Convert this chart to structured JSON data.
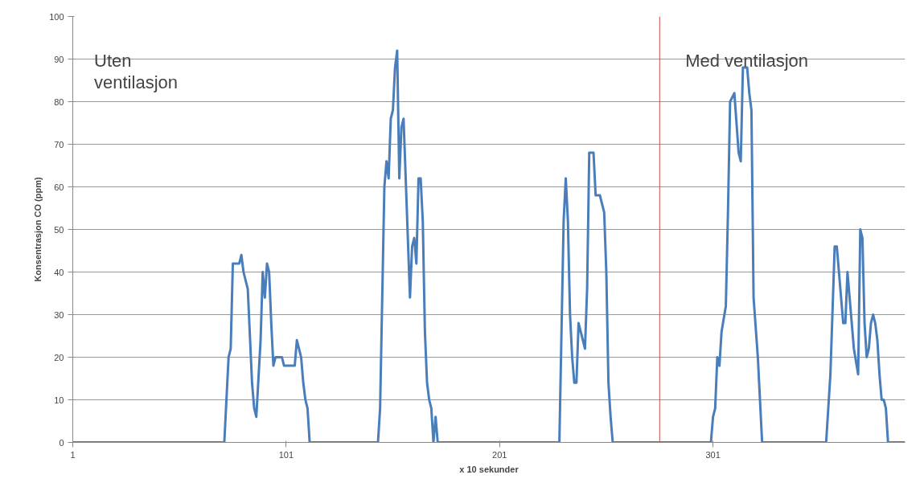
{
  "chart_data": {
    "type": "line",
    "xlabel": "x 10 sekunder",
    "ylabel": "Konsentrasjon CO (ppm)",
    "x": [
      1,
      72,
      74,
      75,
      76,
      79,
      80,
      81,
      83,
      85,
      86,
      87,
      89,
      90,
      91,
      92,
      93,
      94,
      95,
      96,
      99,
      100,
      105,
      106,
      107,
      108,
      109,
      110,
      111,
      112,
      144,
      145,
      147,
      148,
      149,
      150,
      151,
      152,
      153,
      154,
      155,
      156,
      159,
      160,
      161,
      162,
      163,
      164,
      165,
      166,
      167,
      168,
      169,
      170,
      171,
      172,
      229,
      231,
      232,
      233,
      234,
      235,
      236,
      237,
      238,
      239,
      241,
      242,
      243,
      245,
      246,
      248,
      250,
      251,
      252,
      253,
      254,
      300,
      301,
      302,
      303,
      304,
      305,
      307,
      308,
      309,
      311,
      313,
      314,
      315,
      317,
      318,
      319,
      320,
      322,
      323,
      324,
      354,
      355,
      356,
      358,
      359,
      360,
      362,
      363,
      364,
      365,
      367,
      369,
      370,
      371,
      372,
      373,
      374,
      375,
      376,
      377,
      378,
      379,
      380,
      381,
      382,
      383,
      391
    ],
    "series": [
      {
        "color": "#4a7ebb",
        "values": [
          0,
          0,
          20,
          22,
          42,
          42,
          44,
          40,
          36,
          14,
          8,
          6,
          24,
          40,
          34,
          42,
          40,
          28,
          18,
          20,
          20,
          18,
          18,
          24,
          22,
          20,
          14,
          10,
          8,
          0,
          0,
          8,
          60,
          66,
          62,
          76,
          78,
          88,
          92,
          62,
          74,
          76,
          34,
          46,
          48,
          42,
          62,
          62,
          52,
          26,
          14,
          10,
          8,
          0,
          6,
          0,
          0,
          52,
          62,
          52,
          30,
          20,
          14,
          14,
          28,
          26,
          22,
          36,
          68,
          68,
          58,
          58,
          54,
          40,
          14,
          6,
          0,
          0,
          6,
          8,
          20,
          18,
          26,
          32,
          54,
          80,
          82,
          68,
          66,
          88,
          88,
          82,
          78,
          34,
          20,
          10,
          0,
          0,
          8,
          16,
          46,
          46,
          40,
          28,
          28,
          40,
          34,
          22,
          16,
          50,
          48,
          28,
          20,
          22,
          28,
          30,
          28,
          24,
          16,
          10,
          10,
          8,
          0,
          0
        ]
      }
    ],
    "xlim": [
      1,
      391
    ],
    "xticks": [
      1,
      101,
      201,
      301
    ],
    "ylim": [
      0,
      100
    ],
    "yticks": [
      0,
      10,
      20,
      30,
      40,
      50,
      60,
      70,
      80,
      90,
      100
    ],
    "grid": "y",
    "marker": "none",
    "line_style": "solid",
    "ref_lines": [
      {
        "axis": "x",
        "value": 276,
        "color": "#c0504d"
      }
    ],
    "annotations": [
      "Uten\nventilasjon",
      "Med ventilasjon"
    ]
  }
}
